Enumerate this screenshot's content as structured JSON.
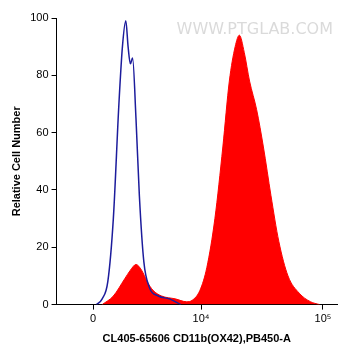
{
  "chart_data": {
    "type": "line",
    "x_label": "CL405-65606 CD11b(OX42),PB450-A",
    "y_label": "Relative Cell Number",
    "annotations": [
      "WWW.PTGLAB.COM"
    ],
    "series": [
      {
        "type": "area",
        "color": "#ff0000",
        "x": [
          458,
          1045,
          1690,
          2038,
          2405,
          2800,
          3225,
          3700,
          4490,
          6000,
          7530,
          8420,
          9800,
          11200,
          13060,
          15200,
          17200,
          19200,
          20800,
          22800,
          25200,
          28800,
          32700,
          37700,
          43700,
          51900,
          64000,
          79100,
          93800
        ],
        "values": [
          0,
          3,
          9,
          12,
          14,
          12,
          8,
          5,
          3,
          2,
          1,
          1.5,
          5,
          13,
          30,
          55,
          78,
          90,
          94,
          88,
          78,
          68,
          55,
          38,
          22,
          10,
          4,
          1,
          0
        ]
      },
      {
        "type": "line",
        "color": "#1c1c9c",
        "x": [
          171,
          458,
          750,
          1045,
          1353,
          1556,
          1757,
          1895,
          2038,
          2180,
          2405,
          2640,
          2965,
          3400,
          4180,
          5320,
          6720
        ],
        "values": [
          0,
          2,
          8,
          30,
          70,
          90,
          99,
          90,
          84,
          86,
          65,
          38,
          15,
          6,
          3,
          2,
          0
        ]
      }
    ],
    "xlim": [
      -2000,
      130000
    ],
    "xticks": [
      {
        "value": 0,
        "label": "0"
      },
      {
        "value": 10000,
        "label": "10⁴"
      },
      {
        "value": 100000,
        "label": "10⁵"
      }
    ],
    "ylim": [
      0,
      100
    ],
    "yticks": [
      0,
      20,
      40,
      60,
      80,
      100
    ],
    "grid": false
  }
}
